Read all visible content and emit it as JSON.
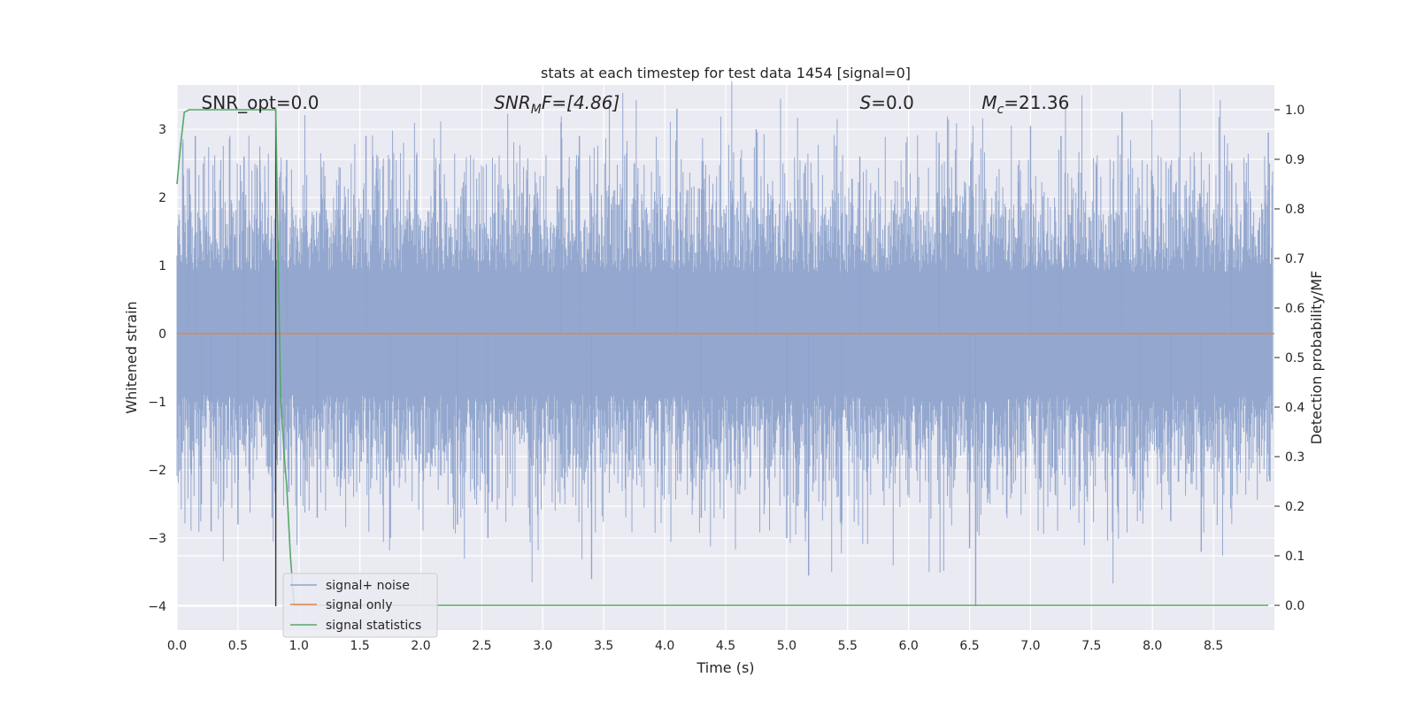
{
  "chart_data": {
    "type": "line",
    "title": "stats at each timestep for test data 1454 [signal=0]",
    "xlabel": "Time (s)",
    "ylabel": "Whitened strain",
    "y2label": "Detection probability/MF",
    "xlim": [
      0.0,
      9.0
    ],
    "ylim": [
      -4.35,
      3.65
    ],
    "y2lim": [
      -0.05,
      1.05
    ],
    "x_ticks": [
      "0.0",
      "0.5",
      "1.0",
      "1.5",
      "2.0",
      "2.5",
      "3.0",
      "3.5",
      "4.0",
      "4.5",
      "5.0",
      "5.5",
      "6.0",
      "6.5",
      "7.0",
      "7.5",
      "8.0",
      "8.5"
    ],
    "y_ticks": [
      "3",
      "2",
      "1",
      "0",
      "−1",
      "−2",
      "−3",
      "−4"
    ],
    "y2_ticks": [
      "1.0",
      "0.9",
      "0.8",
      "0.7",
      "0.6",
      "0.5",
      "0.4",
      "0.3",
      "0.2",
      "0.1",
      "0.0"
    ],
    "grid": true,
    "legend_position": "lower-left",
    "annotations": [
      {
        "text": "SNR_opt=0.0",
        "x": 0.2
      },
      {
        "pre": "SNR",
        "sub": "M",
        "post": "F=[4.86]",
        "x": 2.6
      },
      {
        "pre": "S",
        "sub": "",
        "post": "=0.0",
        "x": 5.6
      },
      {
        "pre": "M",
        "sub": "c",
        "post": "=21.36",
        "x": 6.6
      }
    ],
    "vline_x": 0.81,
    "series": [
      {
        "name": "signal+ noise",
        "color": "#8fa4cc",
        "envelope_positive": 2.1,
        "envelope_negative": -2.1,
        "spikes": [
          {
            "x": 0.1,
            "y": 2.4
          },
          {
            "x": 0.15,
            "y": 2.9
          },
          {
            "x": 0.2,
            "y": -2.5
          },
          {
            "x": 0.28,
            "y": -2.9
          },
          {
            "x": 0.5,
            "y": -2.8
          },
          {
            "x": 0.55,
            "y": 2.6
          },
          {
            "x": 0.68,
            "y": 2.55
          },
          {
            "x": 0.78,
            "y": -2.7
          },
          {
            "x": 0.9,
            "y": 2.55
          },
          {
            "x": 1.15,
            "y": -2.7
          },
          {
            "x": 1.55,
            "y": 2.9
          },
          {
            "x": 1.75,
            "y": -3.0
          },
          {
            "x": 2.3,
            "y": -2.8
          },
          {
            "x": 2.55,
            "y": -3.0
          },
          {
            "x": 3.15,
            "y": 3.1
          },
          {
            "x": 3.3,
            "y": 2.9
          },
          {
            "x": 3.4,
            "y": -3.6
          },
          {
            "x": 3.75,
            "y": 2.5
          },
          {
            "x": 4.1,
            "y": 3.3
          },
          {
            "x": 4.3,
            "y": -2.7
          },
          {
            "x": 4.75,
            "y": 3.0
          },
          {
            "x": 5.0,
            "y": -3.0
          },
          {
            "x": 5.18,
            "y": -3.55
          },
          {
            "x": 5.45,
            "y": -2.8
          },
          {
            "x": 5.6,
            "y": 2.6
          },
          {
            "x": 6.25,
            "y": 2.8
          },
          {
            "x": 6.5,
            "y": -3.15
          },
          {
            "x": 6.55,
            "y": -4.0
          },
          {
            "x": 7.0,
            "y": 3.05
          },
          {
            "x": 7.25,
            "y": 2.9
          },
          {
            "x": 7.75,
            "y": 3.25
          },
          {
            "x": 7.9,
            "y": -2.6
          },
          {
            "x": 8.15,
            "y": -2.75
          },
          {
            "x": 8.4,
            "y": -3.2
          },
          {
            "x": 8.65,
            "y": 2.5
          },
          {
            "x": 8.95,
            "y": 2.95
          }
        ]
      },
      {
        "name": "signal only",
        "color": "#dd8452",
        "x": [
          0.0,
          9.0
        ],
        "y": [
          0.0,
          0.0
        ]
      },
      {
        "name": "signal statistics",
        "color": "#55a868",
        "axis": "right",
        "x": [
          0.0,
          0.03,
          0.06,
          0.1,
          0.2,
          0.4,
          0.6,
          0.81,
          0.83,
          0.85,
          0.88,
          0.9,
          0.93,
          0.96,
          1.0,
          2.0,
          4.0,
          6.0,
          8.0,
          8.95
        ],
        "y": [
          0.85,
          0.93,
          0.995,
          1.0,
          1.0,
          1.0,
          1.0,
          1.0,
          0.7,
          0.42,
          0.3,
          0.24,
          0.1,
          0.0,
          0.0,
          0.0,
          0.0,
          0.0,
          0.0,
          0.0
        ]
      }
    ]
  }
}
